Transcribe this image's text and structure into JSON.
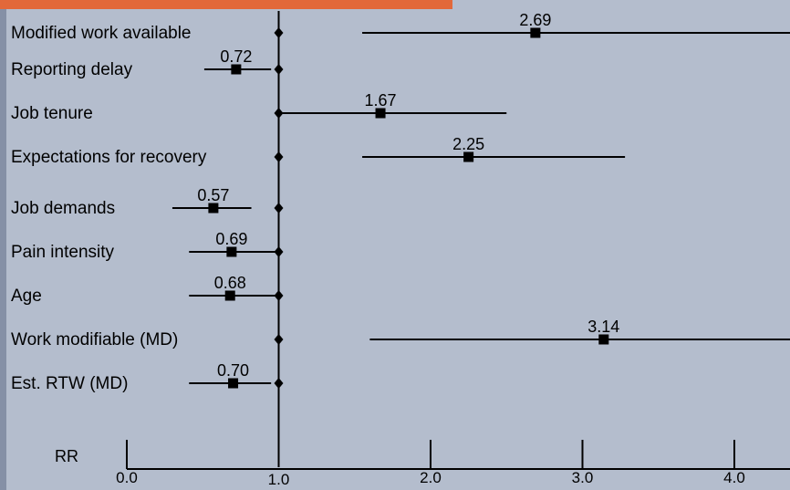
{
  "chart_data": {
    "type": "forest",
    "axis_label": "RR",
    "reference_line": 1.0,
    "x_ticks": [
      "0.0",
      "1.0",
      "2.0",
      "3.0",
      "4.0"
    ],
    "xlim": [
      0.0,
      4.3
    ],
    "rows": [
      {
        "label": "Modified work available",
        "rr": 2.69,
        "rr_text": "2.69",
        "ci_low": 1.55,
        "ci_high": 4.5
      },
      {
        "label": "Reporting delay",
        "rr": 0.72,
        "rr_text": "0.72",
        "ci_low": 0.51,
        "ci_high": 0.95
      },
      {
        "label": "Job tenure",
        "rr": 1.67,
        "rr_text": "1.67",
        "ci_low": 1.0,
        "ci_high": 2.5
      },
      {
        "label": "Expectations for recovery",
        "rr": 2.25,
        "rr_text": "2.25",
        "ci_low": 1.55,
        "ci_high": 3.28
      },
      {
        "label": "Job demands",
        "rr": 0.57,
        "rr_text": "0.57",
        "ci_low": 0.3,
        "ci_high": 0.82
      },
      {
        "label": "Pain intensity",
        "rr": 0.69,
        "rr_text": "0.69",
        "ci_low": 0.41,
        "ci_high": 1.0
      },
      {
        "label": "Age",
        "rr": 0.68,
        "rr_text": "0.68",
        "ci_low": 0.41,
        "ci_high": 1.0
      },
      {
        "label": "Work modifiable (MD)",
        "rr": 3.14,
        "rr_text": "3.14",
        "ci_low": 1.6,
        "ci_high": 4.5
      },
      {
        "label": "Est. RTW (MD)",
        "rr": 0.7,
        "rr_text": "0.70",
        "ci_low": 0.41,
        "ci_high": 0.95
      }
    ]
  },
  "colors": {
    "background": "#b4bdcd",
    "accent_bar": "#e2683a",
    "left_edge": "#8590a6",
    "ink": "#000000"
  }
}
